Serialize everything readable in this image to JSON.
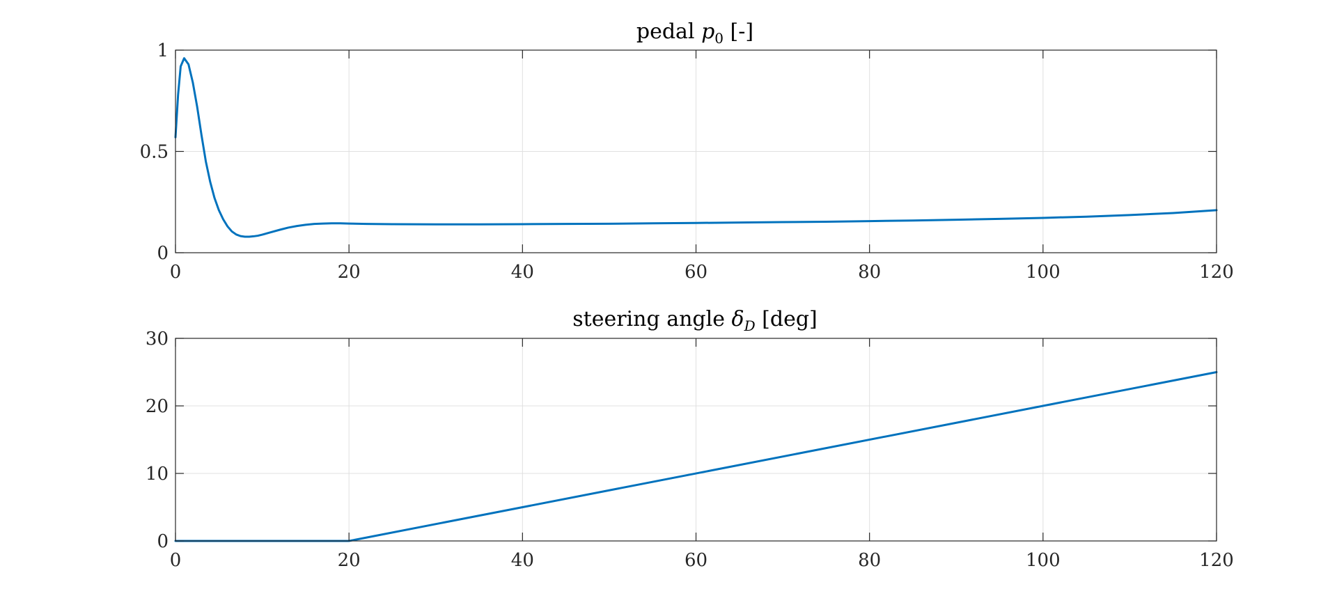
{
  "chart_data": [
    {
      "type": "line",
      "title": "pedal p₀ [-]",
      "title_parts": {
        "prefix": "pedal ",
        "symbol": "p",
        "subscript": "0",
        "suffix": " [-]"
      },
      "xlim": [
        0,
        120
      ],
      "ylim": [
        0,
        1
      ],
      "xticks": [
        0,
        20,
        40,
        60,
        80,
        100,
        120
      ],
      "xtick_labels": [
        "0",
        "20",
        "40",
        "60",
        "80",
        "100",
        "120"
      ],
      "yticks": [
        0,
        0.5,
        1
      ],
      "ytick_labels": [
        "0",
        "0.5",
        "1"
      ],
      "grid": true,
      "color": "#0072BD",
      "x": [
        0,
        0.3,
        0.6,
        1,
        1.5,
        2,
        2.5,
        3,
        3.5,
        4,
        4.5,
        5,
        5.5,
        6,
        6.5,
        7,
        7.5,
        8,
        8.5,
        9,
        9.5,
        10,
        11,
        12,
        13,
        14,
        15,
        16,
        17,
        18,
        19,
        20,
        22,
        25,
        30,
        35,
        40,
        45,
        50,
        55,
        60,
        65,
        70,
        75,
        80,
        85,
        90,
        95,
        100,
        105,
        110,
        115,
        120
      ],
      "y": [
        0.57,
        0.78,
        0.92,
        0.96,
        0.93,
        0.84,
        0.72,
        0.58,
        0.45,
        0.35,
        0.27,
        0.21,
        0.165,
        0.13,
        0.105,
        0.09,
        0.082,
        0.079,
        0.079,
        0.081,
        0.084,
        0.089,
        0.101,
        0.113,
        0.124,
        0.132,
        0.138,
        0.142,
        0.144,
        0.145,
        0.145,
        0.144,
        0.142,
        0.141,
        0.14,
        0.14,
        0.141,
        0.142,
        0.143,
        0.145,
        0.147,
        0.149,
        0.151,
        0.153,
        0.156,
        0.159,
        0.163,
        0.167,
        0.172,
        0.178,
        0.186,
        0.196,
        0.21
      ]
    },
    {
      "type": "line",
      "title": "steering angle δ_D [deg]",
      "title_parts": {
        "prefix": "steering angle ",
        "symbol": "δ",
        "subscript": "D",
        "suffix": " [deg]"
      },
      "xlim": [
        0,
        120
      ],
      "ylim": [
        0,
        30
      ],
      "xticks": [
        0,
        20,
        40,
        60,
        80,
        100,
        120
      ],
      "xtick_labels": [
        "0",
        "20",
        "40",
        "60",
        "80",
        "100",
        "120"
      ],
      "yticks": [
        0,
        10,
        20,
        30
      ],
      "ytick_labels": [
        "0",
        "10",
        "20",
        "30"
      ],
      "grid": true,
      "color": "#0072BD",
      "x": [
        0,
        20,
        120
      ],
      "y": [
        0,
        0,
        25
      ]
    }
  ]
}
